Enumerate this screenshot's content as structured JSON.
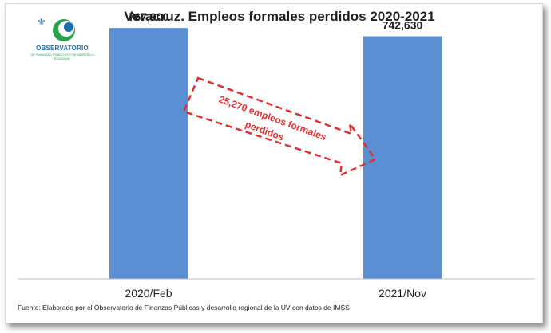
{
  "chart_data": {
    "type": "bar",
    "title": "Veracruz.  Empleos formales perdidos 2020-2021",
    "categories": [
      "2020/Feb",
      "2021/Nov"
    ],
    "values": [
      767900,
      742630
    ],
    "value_labels": [
      "767,900",
      "742,630"
    ],
    "ylim": [
      0,
      800000
    ],
    "bar_color": "#5b8fd4",
    "grid": false,
    "annotation": {
      "line1": "25,270 empleos formales",
      "line2": "perdidos",
      "color": "#e03030"
    }
  },
  "logo": {
    "line1": "OBSERVATORIO",
    "line2": "DE FINANZAS PÚBLICAS Y DESARROLLO REGIONAL",
    "icon": "observatorio-logo-icon"
  },
  "source": "Fuente: Elaborado por el Observatorio de Finanzas Públicas y desarrollo regional de la UV con datos de IMSS"
}
